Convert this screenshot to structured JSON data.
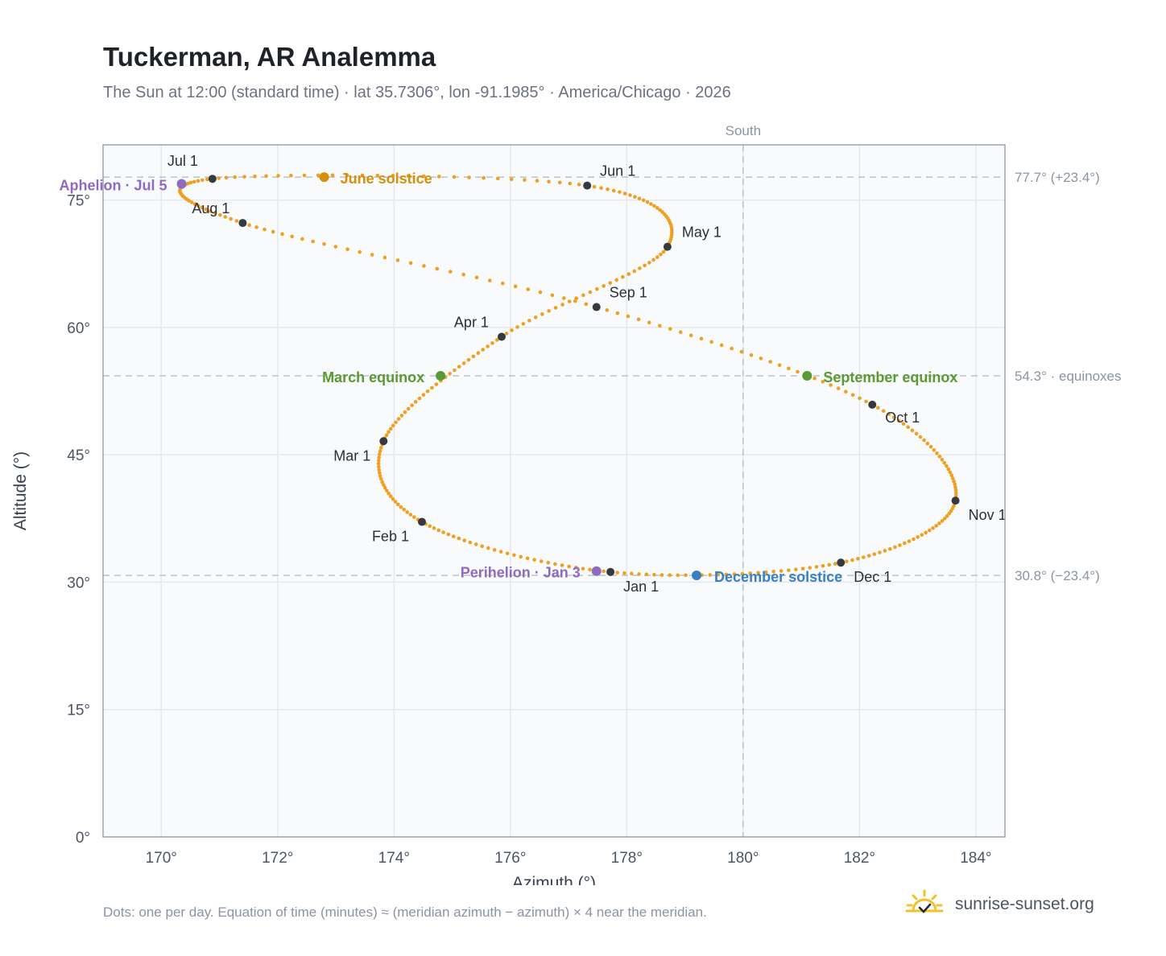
{
  "header": {
    "title": "Tuckerman, AR Analemma",
    "subtitle": "The Sun at 12:00 (standard time) · lat 35.7306°, lon -91.1985° · America/Chicago · 2026"
  },
  "footer": {
    "note": "Dots: one per day. Equation of time (minutes) ≈ (meridian azimuth − azimuth) × 4 near the meridian.",
    "brand": "sunrise-sunset.org"
  },
  "colors": {
    "curve": "#f0a020",
    "month_marker": "#343a40",
    "solstice_june": "#d4900a",
    "solstice_december": "#3a7fc4",
    "equinox": "#5a9a32",
    "apsis": "#8e6bbf",
    "reference_line": "#b8c2cc",
    "plot_background": "#f8fafc",
    "grid": "#e4e9ef",
    "brand_icon": "#f2c12e"
  },
  "chart_data": {
    "type": "scatter",
    "xlabel": "Azimuth (°)",
    "ylabel": "Altitude (°)",
    "xlim": [
      169,
      184.5
    ],
    "ylim": [
      0,
      81.5
    ],
    "x_ticks": [
      170,
      172,
      174,
      176,
      178,
      180,
      182,
      184
    ],
    "y_ticks": [
      0,
      15,
      30,
      45,
      60,
      75
    ],
    "x_tick_labels": [
      "170°",
      "172°",
      "174°",
      "176°",
      "178°",
      "180°",
      "182°",
      "184°"
    ],
    "y_tick_labels": [
      "0°",
      "15°",
      "30°",
      "45°",
      "60°",
      "75°"
    ],
    "grid": true,
    "meridian": {
      "azimuth": 180,
      "label": "South"
    },
    "reference_lines": [
      {
        "altitude": 77.7,
        "label": "77.7° (+23.4°)"
      },
      {
        "altitude": 54.3,
        "label": "54.3° · equinoxes"
      },
      {
        "altitude": 30.8,
        "label": "30.8° (−23.4°)"
      }
    ],
    "month_markers": [
      {
        "label": "Jan 1",
        "az": 177.72,
        "alt": 31.2
      },
      {
        "label": "Feb 1",
        "az": 174.48,
        "alt": 37.1
      },
      {
        "label": "Mar 1",
        "az": 173.82,
        "alt": 46.6
      },
      {
        "label": "Apr 1",
        "az": 175.85,
        "alt": 58.9
      },
      {
        "label": "May 1",
        "az": 178.7,
        "alt": 69.5
      },
      {
        "label": "Jun 1",
        "az": 177.32,
        "alt": 76.7
      },
      {
        "label": "Jul 1",
        "az": 170.88,
        "alt": 77.5
      },
      {
        "label": "Aug 1",
        "az": 171.4,
        "alt": 72.3
      },
      {
        "label": "Sep 1",
        "az": 177.48,
        "alt": 62.4
      },
      {
        "label": "Oct 1",
        "az": 182.22,
        "alt": 50.9
      },
      {
        "label": "Nov 1",
        "az": 183.65,
        "alt": 39.6
      },
      {
        "label": "Dec 1",
        "az": 181.68,
        "alt": 32.3
      }
    ],
    "events": [
      {
        "label": "June solstice",
        "az": 172.8,
        "alt": 77.7,
        "color": "#d4900a"
      },
      {
        "label": "December solstice",
        "az": 179.2,
        "alt": 30.8,
        "color": "#3a7fc4"
      },
      {
        "label": "March equinox",
        "az": 174.8,
        "alt": 54.3,
        "color": "#5a9a32"
      },
      {
        "label": "September equinox",
        "az": 181.1,
        "alt": 54.3,
        "color": "#5a9a32"
      },
      {
        "label": "Aphelion · Jul 5",
        "az": 170.35,
        "alt": 76.9,
        "color": "#8e6bbf"
      },
      {
        "label": "Perihelion · Jan 3",
        "az": 177.48,
        "alt": 31.3,
        "color": "#8e6bbf"
      }
    ]
  }
}
